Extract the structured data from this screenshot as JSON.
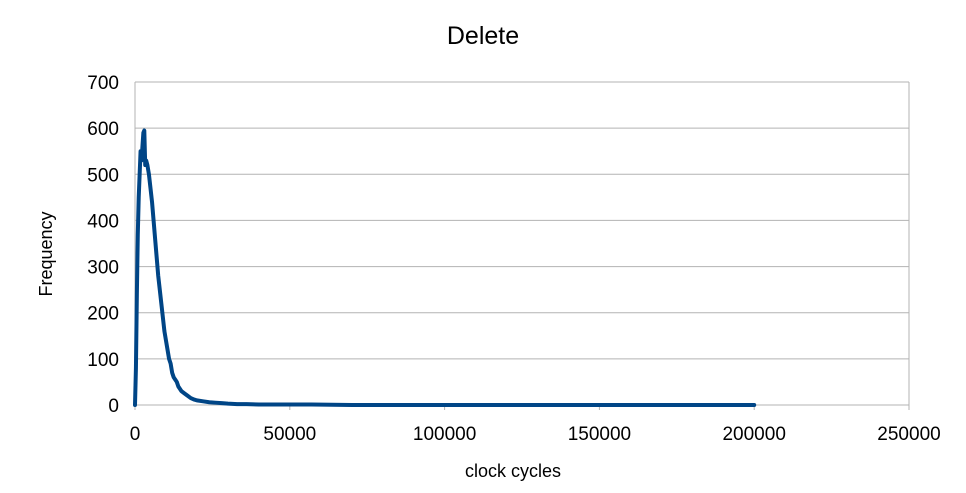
{
  "chart_data": {
    "type": "line",
    "title": "Delete",
    "xlabel": "clock cycles",
    "ylabel": "Frequency",
    "xlim": [
      0,
      250000
    ],
    "ylim": [
      0,
      700
    ],
    "x_ticks": [
      "0",
      "50000",
      "100000",
      "150000",
      "200000",
      "250000"
    ],
    "y_ticks": [
      "0",
      "100",
      "200",
      "300",
      "400",
      "500",
      "600",
      "700"
    ],
    "grid": true,
    "legend": "none",
    "series": [
      {
        "color": "#004586",
        "x": [
          0,
          300,
          600,
          900,
          1200,
          1500,
          1800,
          2100,
          2400,
          2700,
          3000,
          3300,
          3600,
          4000,
          4500,
          5000,
          5500,
          6000,
          6500,
          7000,
          7500,
          8000,
          8500,
          9000,
          9500,
          10000,
          10500,
          11000,
          11500,
          12000,
          12500,
          13000,
          13500,
          14000,
          15000,
          16000,
          17000,
          18000,
          19000,
          20000,
          22000,
          24000,
          26000,
          28000,
          30000,
          33000,
          36000,
          40000,
          45000,
          50000,
          57000,
          70000,
          100000,
          150000,
          200000
        ],
        "y": [
          0,
          80,
          240,
          370,
          450,
          500,
          550,
          530,
          560,
          590,
          595,
          520,
          530,
          520,
          500,
          470,
          440,
          400,
          360,
          320,
          280,
          250,
          220,
          190,
          160,
          140,
          120,
          100,
          90,
          70,
          60,
          55,
          50,
          40,
          30,
          25,
          20,
          15,
          12,
          10,
          8,
          6,
          5,
          4,
          3,
          2,
          2,
          1,
          1,
          1,
          1,
          0,
          0,
          0,
          0
        ]
      }
    ]
  }
}
